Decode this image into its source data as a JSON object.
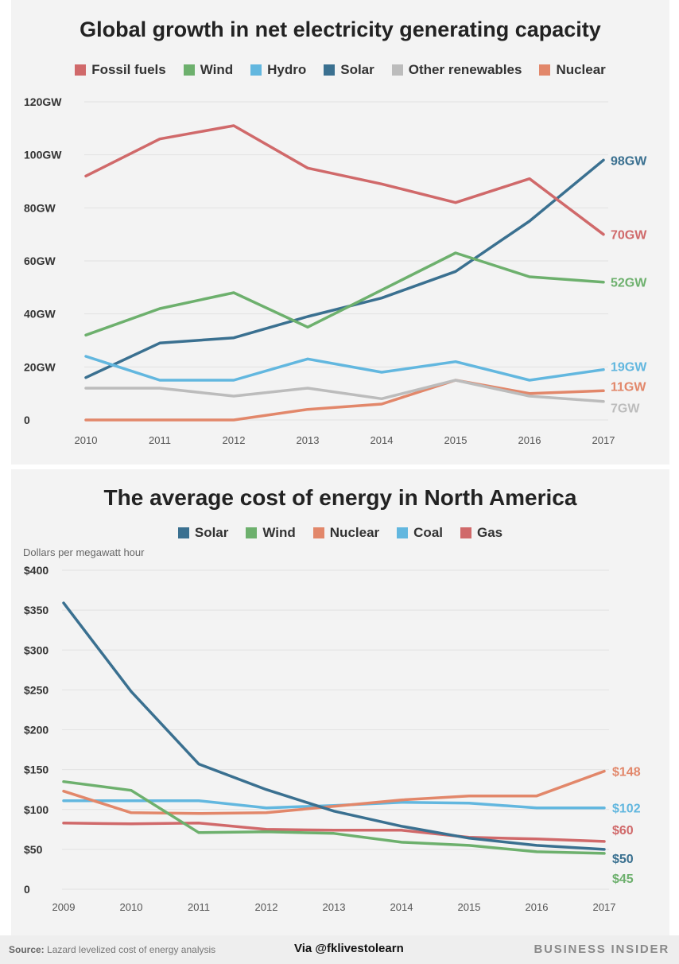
{
  "chart_data": [
    {
      "type": "line",
      "title": "Global growth in net electricity generating capacity",
      "xlabel": "",
      "ylabel": "",
      "x": [
        "2010",
        "2011",
        "2012",
        "2013",
        "2014",
        "2015",
        "2016",
        "2017"
      ],
      "ylim": [
        0,
        120
      ],
      "y_ticks": [
        0,
        20,
        40,
        60,
        80,
        100,
        120
      ],
      "y_tick_labels": [
        "0",
        "20GW",
        "40GW",
        "60GW",
        "80GW",
        "100GW",
        "120GW"
      ],
      "grid": true,
      "legend_position": "top",
      "series": [
        {
          "name": "Fossil fuels",
          "color": "#d0696a",
          "values": [
            92,
            106,
            111,
            95,
            89,
            82,
            91,
            70
          ],
          "end_label": "70GW"
        },
        {
          "name": "Wind",
          "color": "#6db06d",
          "values": [
            32,
            42,
            48,
            35,
            49,
            63,
            54,
            52
          ],
          "end_label": "52GW"
        },
        {
          "name": "Hydro",
          "color": "#62b7df",
          "values": [
            24,
            15,
            15,
            23,
            18,
            22,
            15,
            19
          ],
          "end_label": "19GW"
        },
        {
          "name": "Solar",
          "color": "#3a7090",
          "values": [
            16,
            29,
            31,
            39,
            46,
            56,
            75,
            98
          ],
          "end_label": "98GW"
        },
        {
          "name": "Other renewables",
          "color": "#bcbcbc",
          "values": [
            12,
            12,
            9,
            12,
            8,
            15,
            9,
            7
          ],
          "end_label": "7GW"
        },
        {
          "name": "Nuclear",
          "color": "#e2876a",
          "values": [
            0,
            0,
            0,
            4,
            6,
            15,
            10,
            11
          ],
          "end_label": "11GW"
        }
      ]
    },
    {
      "type": "line",
      "title": "The average cost of energy in North America",
      "xlabel": "",
      "ylabel": "Dollars per megawatt hour",
      "x": [
        "2009",
        "2010",
        "2011",
        "2012",
        "2013",
        "2014",
        "2015",
        "2016",
        "2017"
      ],
      "ylim": [
        0,
        400
      ],
      "y_ticks": [
        0,
        50,
        100,
        150,
        200,
        250,
        300,
        350,
        400
      ],
      "y_tick_labels": [
        "0",
        "$50",
        "$100",
        "$150",
        "$200",
        "$250",
        "$300",
        "$350",
        "$400"
      ],
      "grid": true,
      "legend_position": "top",
      "series": [
        {
          "name": "Solar",
          "color": "#3a7090",
          "values": [
            359,
            248,
            157,
            125,
            98,
            79,
            64,
            55,
            50
          ],
          "end_label": "$50"
        },
        {
          "name": "Wind",
          "color": "#6db06d",
          "values": [
            135,
            124,
            71,
            72,
            70,
            59,
            55,
            47,
            45
          ],
          "end_label": "$45"
        },
        {
          "name": "Nuclear",
          "color": "#e2876a",
          "values": [
            123,
            96,
            95,
            96,
            104,
            112,
            117,
            117,
            148
          ],
          "end_label": "$148"
        },
        {
          "name": "Coal",
          "color": "#62b7df",
          "values": [
            111,
            111,
            111,
            102,
            105,
            109,
            108,
            102,
            102
          ],
          "end_label": "$102"
        },
        {
          "name": "Gas",
          "color": "#d0696a",
          "values": [
            83,
            82,
            83,
            75,
            74,
            74,
            65,
            63,
            60
          ],
          "end_label": "$60"
        }
      ]
    }
  ],
  "footer": {
    "source_label": "Source:",
    "source_text": "Lazard levelized cost of energy analysis",
    "credit": "Via @fklivestolearn",
    "brand": "BUSINESS INSIDER"
  }
}
